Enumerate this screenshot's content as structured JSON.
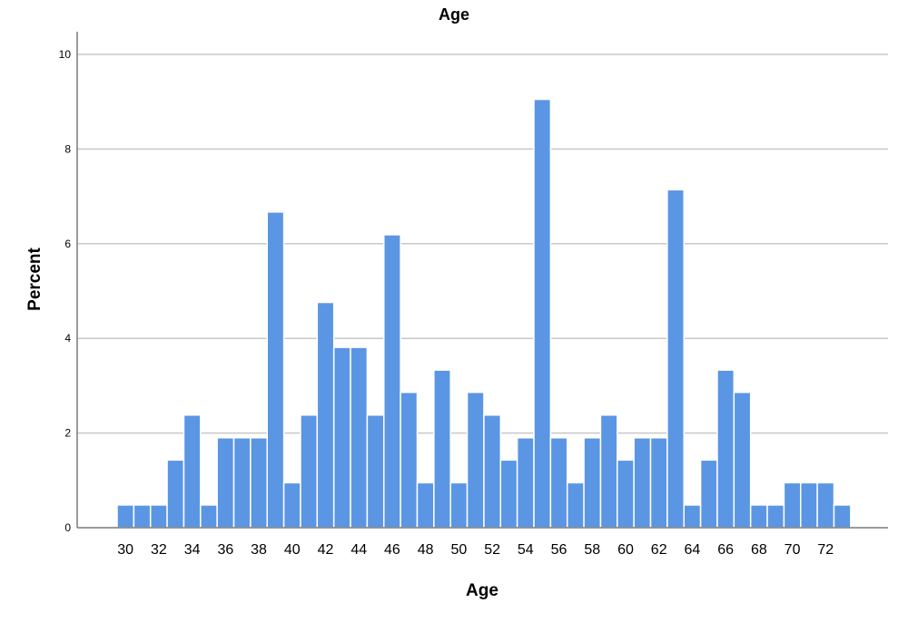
{
  "chart_data": {
    "type": "bar",
    "title": "Age",
    "xlabel": "Age",
    "ylabel": "Percent",
    "x": [
      30,
      31,
      32,
      33,
      34,
      35,
      36,
      37,
      38,
      39,
      40,
      41,
      42,
      43,
      44,
      45,
      46,
      47,
      48,
      49,
      50,
      51,
      52,
      53,
      54,
      55,
      56,
      57,
      58,
      59,
      60,
      61,
      62,
      63,
      64,
      65,
      66,
      67,
      68,
      69,
      70,
      71,
      72,
      73
    ],
    "values": [
      0.48,
      0.48,
      0.48,
      1.43,
      2.38,
      0.48,
      1.9,
      1.9,
      1.9,
      6.67,
      0.95,
      2.38,
      4.76,
      3.81,
      3.81,
      2.38,
      6.19,
      2.86,
      0.95,
      3.33,
      0.95,
      2.86,
      2.38,
      1.43,
      1.9,
      9.05,
      1.9,
      0.95,
      1.9,
      2.38,
      1.43,
      1.9,
      1.9,
      7.14,
      0.48,
      1.43,
      3.33,
      2.86,
      0.48,
      0.48,
      0.95,
      0.95,
      0.95,
      0.48
    ],
    "xticks": [
      "30",
      "32",
      "34",
      "36",
      "38",
      "40",
      "42",
      "44",
      "46",
      "48",
      "50",
      "52",
      "54",
      "56",
      "58",
      "60",
      "62",
      "64",
      "66",
      "68",
      "70",
      "72"
    ],
    "yticks": [
      "0",
      "2",
      "4",
      "6",
      "8",
      "10"
    ],
    "ylim": [
      0,
      10.5
    ],
    "grid": true,
    "bar_color": "#5a96e3"
  }
}
